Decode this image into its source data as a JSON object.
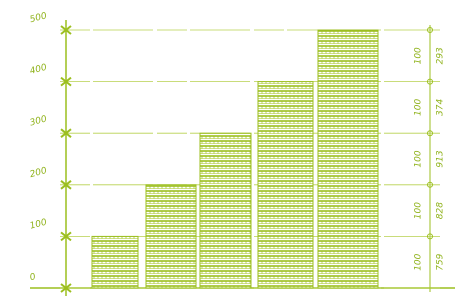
{
  "chart_data": {
    "type": "bar",
    "categories": [
      null,
      null,
      null,
      null,
      null
    ],
    "values": [
      100,
      200,
      300,
      400,
      500
    ],
    "color": "#9cbf1f",
    "ylim": [
      0,
      500
    ],
    "yticks": [
      0,
      100,
      200,
      300,
      400,
      500
    ],
    "grid": true,
    "right_labels": [
      [
        "100",
        "759"
      ],
      [
        "100",
        "828"
      ],
      [
        "100",
        "913"
      ],
      [
        "100",
        "374"
      ],
      [
        "100",
        "293"
      ]
    ]
  }
}
